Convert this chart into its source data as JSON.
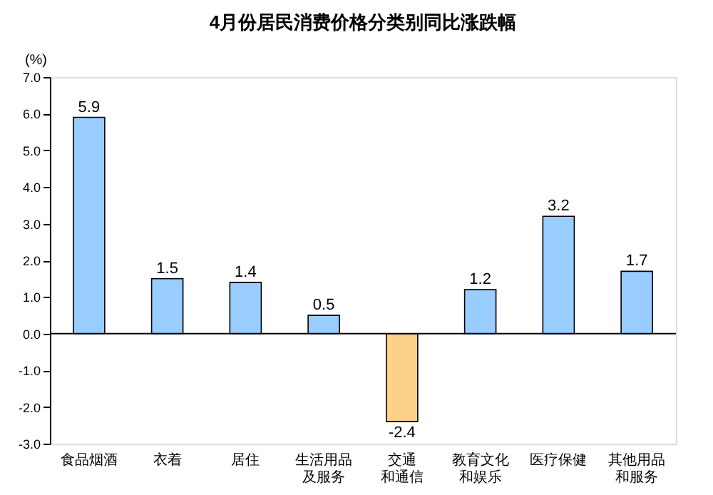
{
  "chart_data": {
    "type": "bar",
    "title": "4月份居民消费价格分类别同比涨跌幅",
    "ylabel": "(%)",
    "categories": [
      "食品烟酒",
      "衣着",
      "居住",
      "生活用品及服务",
      "交通和通信",
      "教育文化和娱乐",
      "医疗保健",
      "其他用品和服务"
    ],
    "values": [
      5.9,
      1.5,
      1.4,
      0.5,
      -2.4,
      1.2,
      3.2,
      1.7
    ],
    "colors": [
      "#99ccff",
      "#99ccff",
      "#99ccff",
      "#99ccff",
      "#fcd18a",
      "#99ccff",
      "#99ccff",
      "#99ccff"
    ],
    "ylim": [
      -3,
      7
    ],
    "yticks": [
      {
        "value": -3,
        "label": "-3.0"
      },
      {
        "value": -2,
        "label": "-2.0"
      },
      {
        "value": -1,
        "label": "-1.0"
      },
      {
        "value": 0,
        "label": "0.0"
      },
      {
        "value": 1,
        "label": "1.0"
      },
      {
        "value": 2,
        "label": "2.0"
      },
      {
        "value": 3,
        "label": "3.0"
      },
      {
        "value": 4,
        "label": "4.0"
      },
      {
        "value": 5,
        "label": "5.0"
      },
      {
        "value": 6,
        "label": "6.0"
      },
      {
        "value": 7,
        "label": "7.0"
      }
    ],
    "ref_lines": [
      {
        "axis": "y",
        "value": 0,
        "color": "#000000"
      }
    ],
    "data_labels": true,
    "grid": false
  }
}
